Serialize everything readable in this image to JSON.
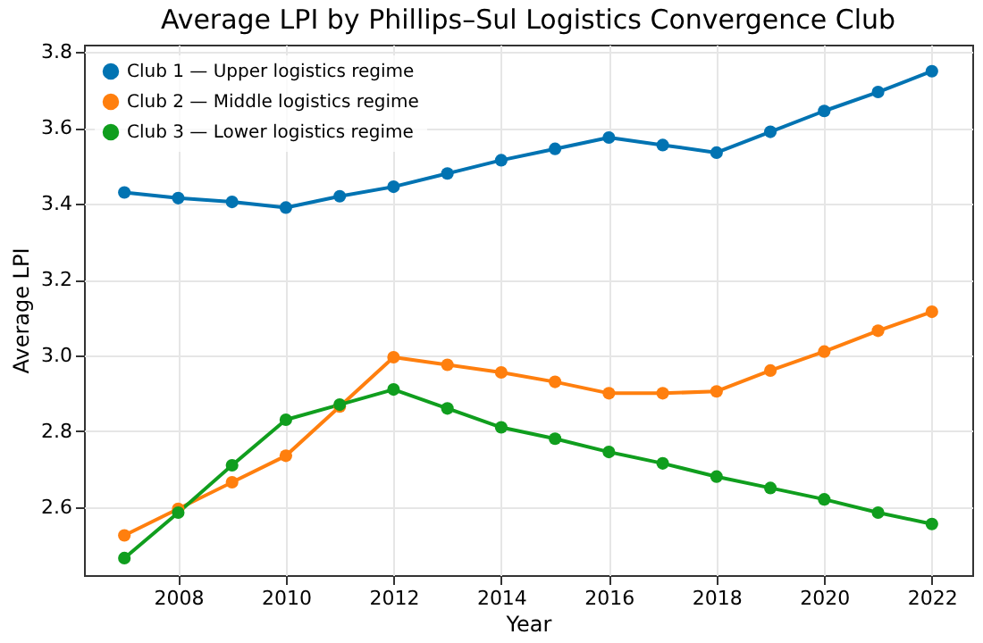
{
  "chart_data": {
    "type": "line",
    "title": "Average LPI by Phillips–Sul Logistics Convergence Club",
    "xlabel": "Year",
    "ylabel": "Average LPI",
    "x": [
      2007,
      2008,
      2009,
      2010,
      2011,
      2012,
      2013,
      2014,
      2015,
      2016,
      2017,
      2018,
      2019,
      2020,
      2021,
      2022
    ],
    "series": [
      {
        "name": "Club 1 — Upper logistics regime",
        "color": "#0173b2",
        "values": [
          3.43,
          3.415,
          3.405,
          3.39,
          3.42,
          3.445,
          3.48,
          3.515,
          3.545,
          3.575,
          3.555,
          3.535,
          3.59,
          3.645,
          3.695,
          3.75
        ]
      },
      {
        "name": "Club 2 — Middle logistics regime",
        "color": "#ff7f0e",
        "values": [
          2.525,
          2.595,
          2.665,
          2.735,
          2.865,
          2.995,
          2.975,
          2.955,
          2.93,
          2.9,
          2.9,
          2.905,
          2.96,
          3.01,
          3.065,
          3.115
        ]
      },
      {
        "name": "Club 3 — Lower logistics regime",
        "color": "#109e1e",
        "values": [
          2.465,
          2.585,
          2.71,
          2.83,
          2.87,
          2.91,
          2.86,
          2.81,
          2.78,
          2.745,
          2.715,
          2.68,
          2.65,
          2.62,
          2.585,
          2.555
        ]
      }
    ],
    "xlim": [
      2006.25,
      2022.75
    ],
    "xticks": [
      2008,
      2010,
      2012,
      2014,
      2016,
      2018,
      2020,
      2022
    ],
    "ylim": [
      2.42,
      3.82
    ],
    "yticks": [
      2.6,
      2.8,
      {
        "value": 3,
        "label": "3.0"
      },
      3.2,
      3.4,
      3.6,
      3.8
    ],
    "grid": true,
    "legend": "top left",
    "marker": "circle",
    "line_style": "solid"
  }
}
